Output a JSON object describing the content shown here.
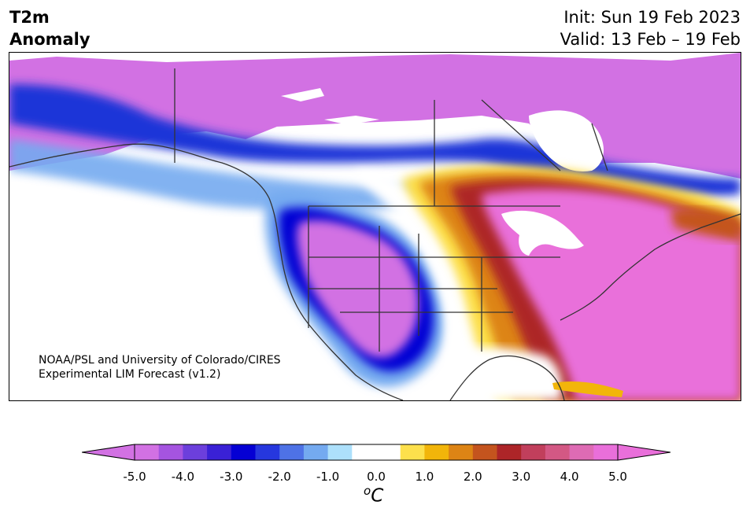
{
  "header": {
    "variable": "T2m",
    "subtitle": "Anomaly",
    "init": "Init: Sun 19 Feb 2023",
    "valid": "Valid: 13 Feb – 19 Feb"
  },
  "credit": {
    "line1": "NOAA/PSL and University of Colorado/CIRES",
    "line2": "Experimental LIM Forecast (v1.2)"
  },
  "colorbar": {
    "unit_symbol": "C",
    "unit_prefix": "o",
    "ticks": [
      "-5.0",
      "-4.0",
      "-3.0",
      "-2.0",
      "-1.0",
      "0.0",
      "1.0",
      "2.0",
      "3.0",
      "4.0",
      "5.0"
    ],
    "colors": [
      "#d271e3",
      "#a554e0",
      "#6c3fdc",
      "#3a21d6",
      "#0500d4",
      "#2637de",
      "#4e72e6",
      "#74aaf0",
      "#ade0fb",
      "#ffffff",
      "#ffffff",
      "#fde04c",
      "#f2b50a",
      "#dd8415",
      "#c4541e",
      "#ad2528",
      "#c13f5c",
      "#d35884",
      "#de6bb4",
      "#e96fda"
    ],
    "under_color": "#d271e3",
    "over_color": "#e96fda"
  }
}
